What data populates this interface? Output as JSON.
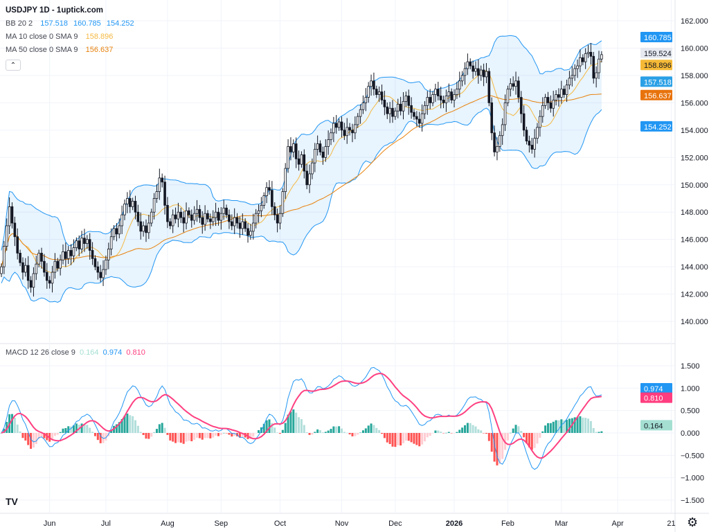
{
  "header": {
    "title": "USDJPY 1D - 1uptick.com",
    "collapse_icon": "chevron-up-icon"
  },
  "indicators": {
    "bb": {
      "label": "BB 20 2",
      "basis": "157.518",
      "upper": "160.785",
      "lower": "154.252",
      "color": "#2196f3"
    },
    "ma10": {
      "label": "MA 10 close 0 SMA 9",
      "value": "158.896",
      "color": "#f5b942"
    },
    "ma50": {
      "label": "MA 50 close 0 SMA 9",
      "value": "156.637",
      "color": "#e8820c"
    },
    "macd": {
      "label": "MACD 12 26 close 9",
      "hist": "0.164",
      "macd": "0.974",
      "signal": "0.810",
      "hist_color": "#a4dfd2",
      "macd_color": "#2196f3",
      "signal_color": "#ff4081"
    }
  },
  "price_axis": {
    "ticks": [
      "162.000",
      "160.000",
      "158.000",
      "156.000",
      "154.000",
      "152.000",
      "150.000",
      "148.000",
      "146.000",
      "144.000",
      "142.000",
      "140.000"
    ],
    "last_price": "159.524"
  },
  "macd_axis": {
    "ticks": [
      "1.500",
      "1.000",
      "0.500",
      "0.000",
      "−0.500",
      "−1.000",
      "−1.500"
    ]
  },
  "time_axis": {
    "ticks": [
      "Jun",
      "Jul",
      "Aug",
      "Sep",
      "Oct",
      "Nov",
      "Dec",
      "2026",
      "Feb",
      "Mar",
      "Apr",
      "21"
    ]
  },
  "chart_data": {
    "type": "candlestick",
    "symbol": "USDJPY",
    "interval": "1D",
    "ylim": [
      139,
      162.5
    ],
    "macd_ylim": [
      -1.8,
      1.9
    ],
    "grid": true,
    "closes": [
      144.0,
      145.5,
      147.0,
      148.4,
      147.2,
      146.2,
      145.0,
      144.3,
      143.6,
      144.1,
      143.0,
      142.5,
      143.5,
      144.2,
      145.0,
      144.4,
      143.6,
      143.0,
      142.8,
      143.6,
      144.4,
      143.9,
      144.5,
      145.1,
      144.6,
      145.2,
      144.8,
      145.4,
      145.9,
      145.3,
      146.1,
      145.7,
      146.0,
      145.2,
      144.6,
      144.0,
      143.6,
      143.2,
      143.8,
      144.5,
      145.3,
      146.2,
      146.8,
      146.4,
      147.0,
      147.8,
      148.6,
      149.0,
      148.4,
      148.8,
      148.0,
      147.3,
      146.6,
      147.0,
      146.5,
      147.2,
      148.0,
      149.0,
      149.5,
      150.5,
      150.2,
      148.5,
      147.3,
      147.0,
      147.8,
      147.5,
      148.0,
      147.6,
      147.2,
      148.1,
      147.8,
      147.4,
      147.9,
      148.2,
      147.6,
      147.1,
      147.9,
      147.5,
      147.3,
      147.6,
      148.0,
      147.4,
      147.9,
      148.3,
      147.8,
      147.3,
      147.0,
      147.6,
      147.2,
      146.8,
      147.3,
      146.8,
      146.3,
      146.6,
      147.2,
      147.9,
      148.1,
      148.5,
      149.2,
      149.8,
      149.6,
      148.4,
      147.8,
      147.2,
      147.9,
      149.5,
      151.2,
      152.8,
      152.4,
      153.0,
      151.9,
      151.5,
      152.2,
      151.0,
      150.0,
      150.8,
      151.6,
      152.6,
      153.0,
      152.4,
      152.0,
      152.8,
      153.3,
      153.8,
      154.5,
      154.2,
      154.6,
      154.0,
      153.6,
      154.2,
      154.0,
      153.8,
      154.4,
      155.0,
      155.5,
      156.0,
      156.4,
      157.2,
      157.6,
      157.0,
      156.6,
      156.8,
      156.2,
      155.7,
      155.2,
      155.6,
      155.0,
      155.4,
      155.9,
      155.4,
      156.1,
      156.5,
      155.8,
      155.3,
      155.0,
      154.8,
      154.5,
      155.2,
      155.8,
      156.4,
      156.0,
      156.6,
      157.0,
      156.5,
      156.2,
      156.0,
      156.5,
      156.8,
      156.2,
      156.6,
      157.0,
      157.6,
      158.0,
      158.5,
      159.0,
      158.7,
      158.3,
      158.5,
      158.0,
      158.4,
      157.9,
      158.3,
      156.0,
      153.8,
      152.4,
      152.8,
      153.6,
      154.4,
      156.0,
      157.0,
      157.4,
      157.2,
      157.6,
      156.4,
      155.2,
      154.0,
      153.2,
      152.9,
      152.6,
      153.4,
      154.2,
      155.0,
      155.8,
      156.4,
      156.0,
      155.6,
      156.2,
      156.6,
      156.4,
      157.0,
      156.6,
      157.3,
      157.8,
      158.0,
      158.5,
      158.7,
      159.3,
      159.0,
      159.6,
      159.7,
      159.4,
      157.8,
      158.2,
      159.2,
      159.524
    ],
    "up_color": "#ffffff",
    "down_color": "#131722",
    "hist_colors": {
      "pos_up": "#26a69a",
      "pos_down": "#b2dfdb",
      "neg_down": "#ff5252",
      "neg_up": "#ffcdd2"
    }
  },
  "footer": {
    "logo": "TV",
    "settings_icon": "gear-icon"
  }
}
